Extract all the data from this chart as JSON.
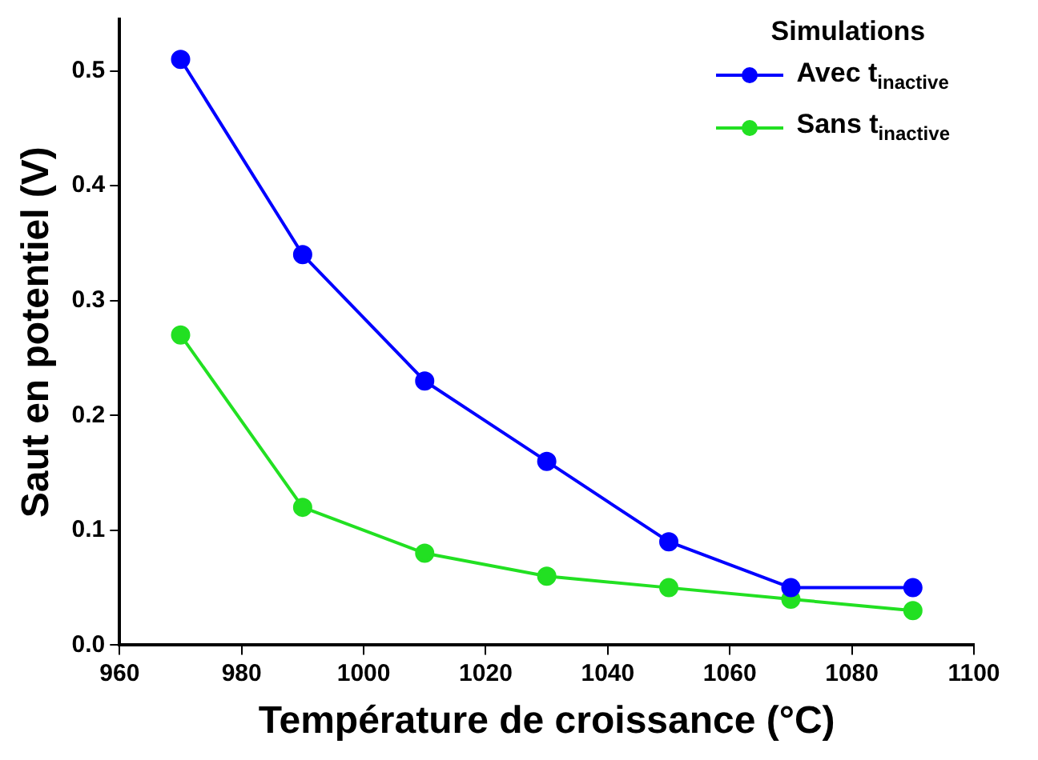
{
  "chart_data": {
    "type": "line",
    "xlabel": "Température de croissance (°C)",
    "ylabel": "Saut en potentiel (V)",
    "legend_title": "Simulations",
    "legend": "top right",
    "marker": "circle",
    "line_style": "solid",
    "grid": false,
    "x": [
      970,
      990,
      1010,
      1030,
      1050,
      1070,
      1090
    ],
    "series": [
      {
        "name": "Avec t$_{inactive}$",
        "color": "#0000ff",
        "values": [
          0.51,
          0.34,
          0.23,
          0.16,
          0.09,
          0.05,
          0.05
        ]
      },
      {
        "name": "Sans t$_{inactive}$",
        "color": "#22e022",
        "values": [
          0.27,
          0.12,
          0.08,
          0.06,
          0.05,
          0.04,
          0.03
        ]
      }
    ],
    "xlim": [
      960,
      1100
    ],
    "xticks": [
      960,
      980,
      1000,
      1020,
      1040,
      1060,
      1080,
      1100
    ],
    "ylim": [
      0,
      0.545
    ],
    "yticks": [
      {
        "value": 0,
        "label": "0.0"
      },
      0.1,
      0.2,
      0.3,
      0.4,
      0.5
    ]
  }
}
